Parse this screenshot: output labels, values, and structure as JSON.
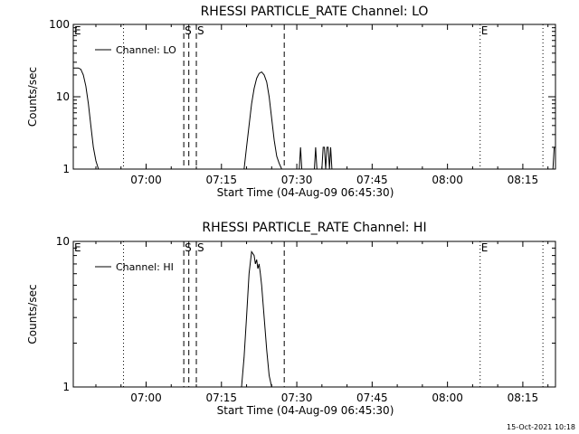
{
  "footer_stamp": "15-Oct-2021 10:18",
  "chart_data": [
    {
      "type": "line",
      "title": "RHESSI PARTICLE_RATE Channel: LO",
      "xlabel": "Start Time (04-Aug-09 06:45:30)",
      "ylabel": "Counts/sec",
      "y_scale": "log",
      "xlim": [
        "06:45:30",
        "08:21:30"
      ],
      "ylim": [
        1,
        100
      ],
      "xticks": [
        "07:00",
        "07:15",
        "07:30",
        "07:45",
        "08:00",
        "08:15"
      ],
      "yticks": [
        "1",
        "10",
        "100"
      ],
      "grid": false,
      "legend_position": "top-left",
      "series": [
        {
          "name": "Channel: LO",
          "x": [
            "06:45:30",
            "06:46:30",
            "06:47:00",
            "06:47:30",
            "06:48:00",
            "06:48:30",
            "06:49:00",
            "06:49:30",
            "06:50:00",
            "06:50:30",
            "06:51:00",
            "07:19:30",
            "07:20:00",
            "07:20:30",
            "07:21:00",
            "07:21:30",
            "07:22:00",
            "07:22:30",
            "07:23:00",
            "07:23:30",
            "07:24:00",
            "07:24:30",
            "07:25:00",
            "07:25:30",
            "07:26:00",
            "07:26:30",
            "07:27:00",
            "07:30:30",
            "07:30:45",
            "07:31:00",
            "07:33:30",
            "07:33:45",
            "07:34:00",
            "07:35:00",
            "07:35:15",
            "07:35:30",
            "07:35:45",
            "07:36:00",
            "07:36:15",
            "07:36:30",
            "07:36:45",
            "07:37:00",
            "08:21:00",
            "08:21:15",
            "08:21:30"
          ],
          "values": [
            25,
            25,
            24,
            20,
            14,
            8,
            4,
            2,
            1.3,
            1,
            1,
            1,
            2,
            4,
            8,
            13,
            18,
            21,
            22,
            20,
            16,
            10,
            5,
            2.5,
            1.5,
            1.2,
            1,
            1,
            2,
            1,
            1,
            2,
            1,
            1,
            2,
            2,
            1,
            2,
            2,
            1,
            2,
            1,
            1,
            2,
            2
          ]
        }
      ],
      "annotations": [
        {
          "label": "E",
          "x": "06:45:30",
          "style": "none"
        },
        {
          "label": "",
          "x": "06:55:30",
          "style": "dotted"
        },
        {
          "label": "S",
          "x": "07:07:30",
          "style": "dashed"
        },
        {
          "label": "",
          "x": "07:08:30",
          "style": "dashed"
        },
        {
          "label": "S",
          "x": "07:10:00",
          "style": "dashed"
        },
        {
          "label": "",
          "x": "07:27:30",
          "style": "dashed"
        },
        {
          "label": "E",
          "x": "08:06:30",
          "style": "dotted"
        },
        {
          "label": "",
          "x": "08:19:00",
          "style": "dotted"
        }
      ]
    },
    {
      "type": "line",
      "title": "RHESSI PARTICLE_RATE Channel: HI",
      "xlabel": "Start Time (04-Aug-09 06:45:30)",
      "ylabel": "Counts/sec",
      "y_scale": "log",
      "xlim": [
        "06:45:30",
        "08:21:30"
      ],
      "ylim": [
        1,
        10
      ],
      "xticks": [
        "07:00",
        "07:15",
        "07:30",
        "07:45",
        "08:00",
        "08:15"
      ],
      "yticks": [
        "1",
        "10"
      ],
      "grid": false,
      "legend_position": "top-left",
      "series": [
        {
          "name": "Channel: HI",
          "x": [
            "07:19:00",
            "07:19:30",
            "07:20:00",
            "07:20:30",
            "07:21:00",
            "07:21:30",
            "07:21:45",
            "07:22:00",
            "07:22:15",
            "07:22:30",
            "07:22:45",
            "07:23:00",
            "07:23:30",
            "07:24:00",
            "07:24:30",
            "07:25:00"
          ],
          "values": [
            1,
            1.6,
            3,
            6,
            8.5,
            8,
            7,
            7.5,
            6.5,
            7,
            6,
            5,
            3,
            1.8,
            1.2,
            1
          ]
        }
      ],
      "annotations": [
        {
          "label": "E",
          "x": "06:45:30",
          "style": "none"
        },
        {
          "label": "",
          "x": "06:55:30",
          "style": "dotted"
        },
        {
          "label": "S",
          "x": "07:07:30",
          "style": "dashed"
        },
        {
          "label": "",
          "x": "07:08:30",
          "style": "dashed"
        },
        {
          "label": "S",
          "x": "07:10:00",
          "style": "dashed"
        },
        {
          "label": "",
          "x": "07:27:30",
          "style": "dashed"
        },
        {
          "label": "E",
          "x": "08:06:30",
          "style": "dotted"
        },
        {
          "label": "",
          "x": "08:19:00",
          "style": "dotted"
        }
      ]
    }
  ]
}
